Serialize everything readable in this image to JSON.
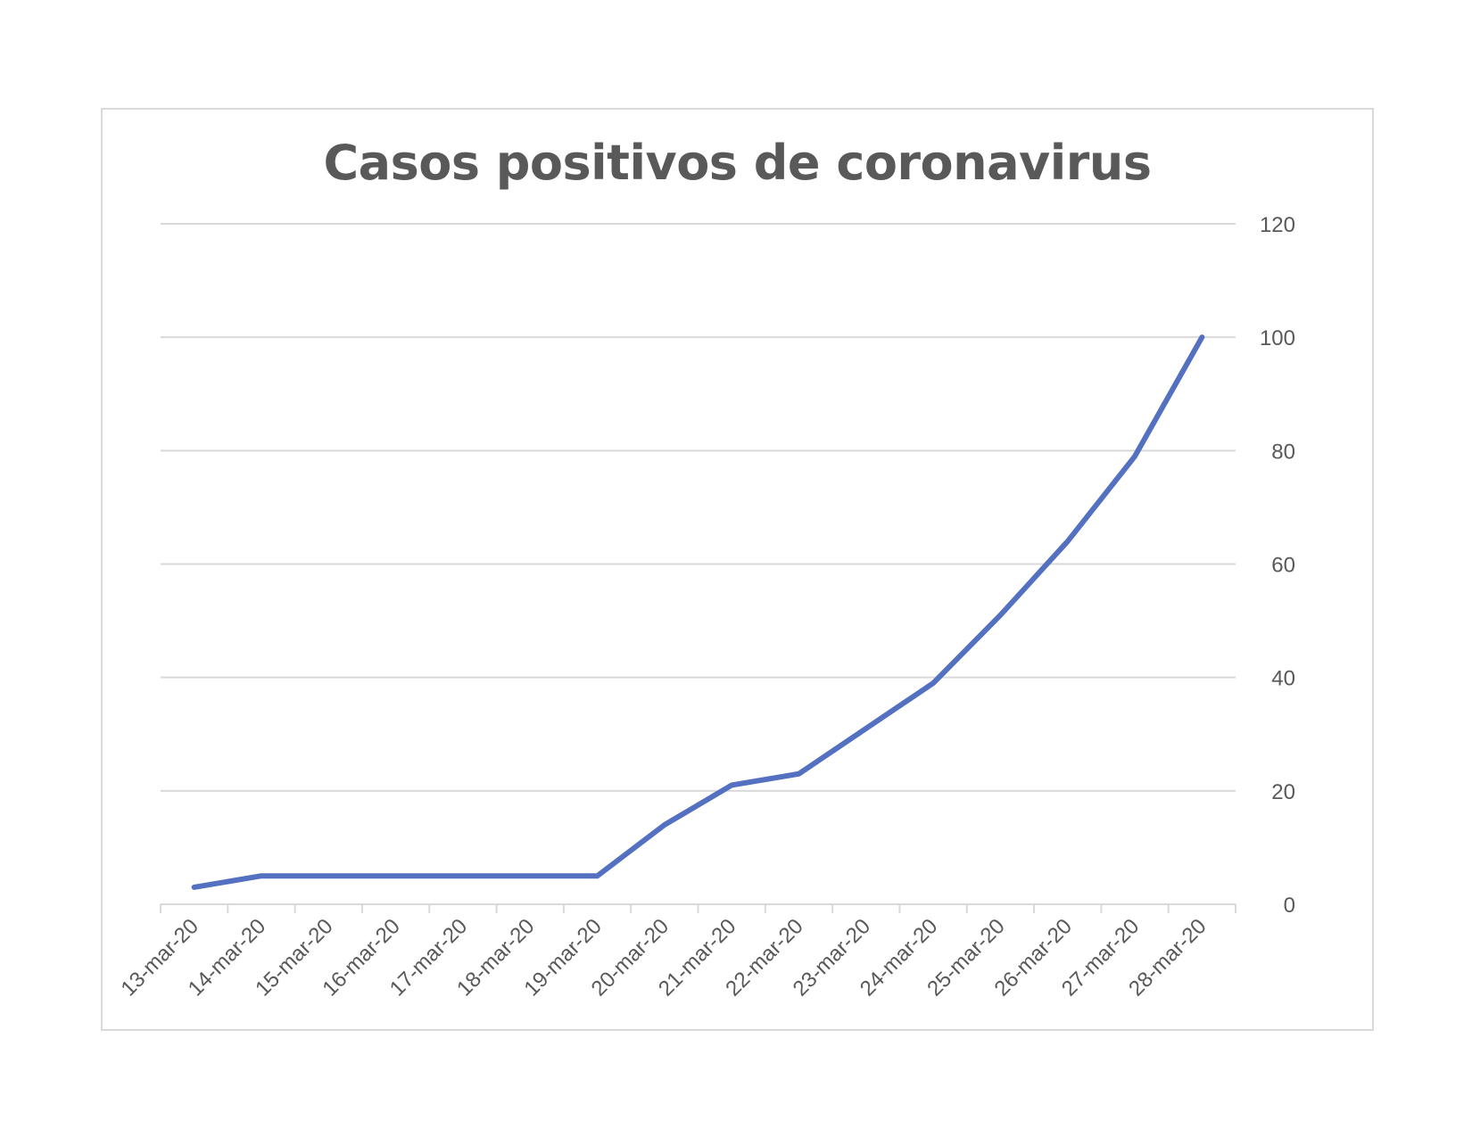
{
  "chart_data": {
    "type": "line",
    "title": "Casos positivos de coronavirus",
    "xlabel": "",
    "ylabel": "",
    "categories": [
      "13-mar-20",
      "14-mar-20",
      "15-mar-20",
      "16-mar-20",
      "17-mar-20",
      "18-mar-20",
      "19-mar-20",
      "20-mar-20",
      "21-mar-20",
      "22-mar-20",
      "23-mar-20",
      "24-mar-20",
      "25-mar-20",
      "26-mar-20",
      "27-mar-20",
      "28-mar-20"
    ],
    "series": [
      {
        "values": [
          3,
          5,
          5,
          5,
          5,
          5,
          5,
          14,
          21,
          23,
          31,
          39,
          51,
          64,
          79,
          100
        ]
      }
    ],
    "ylim": [
      0,
      120
    ],
    "yticks": [
      0,
      20,
      40,
      60,
      80,
      100,
      120
    ],
    "y_axis_side": "right",
    "x_label_rotation": -45,
    "grid": true,
    "legend": "none",
    "colors": {
      "line": "#5470C1",
      "grid": "#d9d9d9",
      "text": "#595959"
    }
  }
}
